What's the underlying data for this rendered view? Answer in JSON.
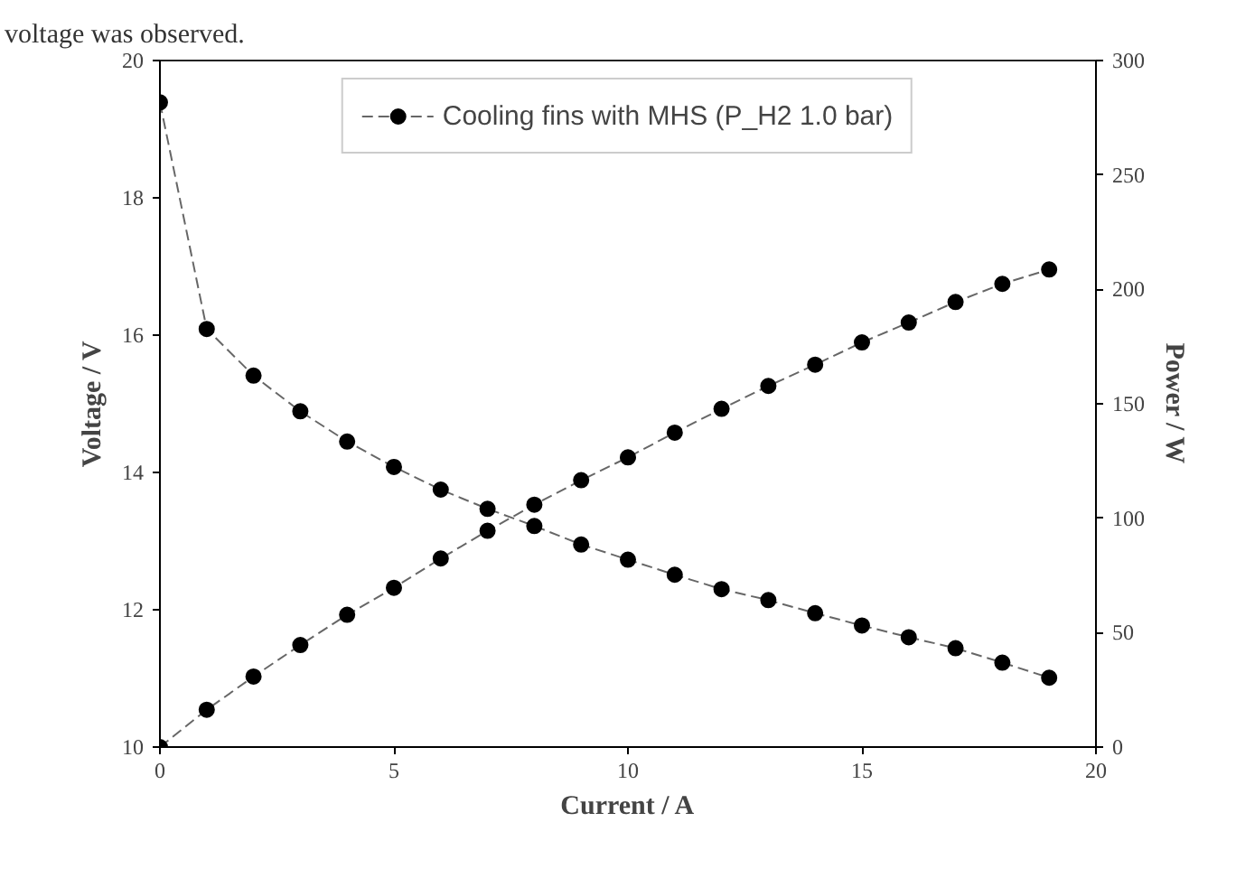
{
  "chart_data": {
    "type": "line",
    "xlabel": "Current / A",
    "ylabel": "Voltage / V",
    "y2label": "Power / W",
    "annotations": [
      "voltage was observed."
    ],
    "x": [
      0,
      1,
      2,
      3,
      4,
      5,
      6,
      7,
      8,
      9,
      10,
      11,
      12,
      13,
      14,
      15,
      16,
      17,
      18,
      19
    ],
    "series": [
      {
        "name": "Cooling fins with MHS (P_H2 1.0 bar)",
        "color": "#000000",
        "values": [
          19.39,
          16.09,
          15.41,
          14.89,
          14.45,
          14.08,
          13.75,
          13.47,
          13.22,
          12.95,
          12.73,
          12.51,
          12.3,
          12.14,
          11.95,
          11.77,
          11.6,
          11.44,
          11.23,
          11.01
        ]
      },
      {
        "color": "#000000",
        "axis": "y2",
        "values": [
          0,
          16.3,
          30.8,
          44.6,
          57.8,
          69.6,
          82.4,
          94.5,
          105.9,
          116.6,
          126.6,
          137.4,
          147.8,
          157.8,
          167.1,
          176.8,
          185.5,
          194.5,
          202.4,
          208.7
        ]
      }
    ],
    "xlim": [
      0,
      20
    ],
    "xticks": [
      0,
      5,
      10,
      15,
      20
    ],
    "ylim": [
      10,
      20
    ],
    "yticks": [
      10,
      12,
      14,
      16,
      18,
      20
    ],
    "y2lim": [
      0,
      300
    ],
    "y2ticks": [
      0,
      50,
      100,
      150,
      200,
      250,
      300
    ],
    "marker": "circle",
    "line_style": "dashed",
    "legend": "top",
    "grid": false
  }
}
